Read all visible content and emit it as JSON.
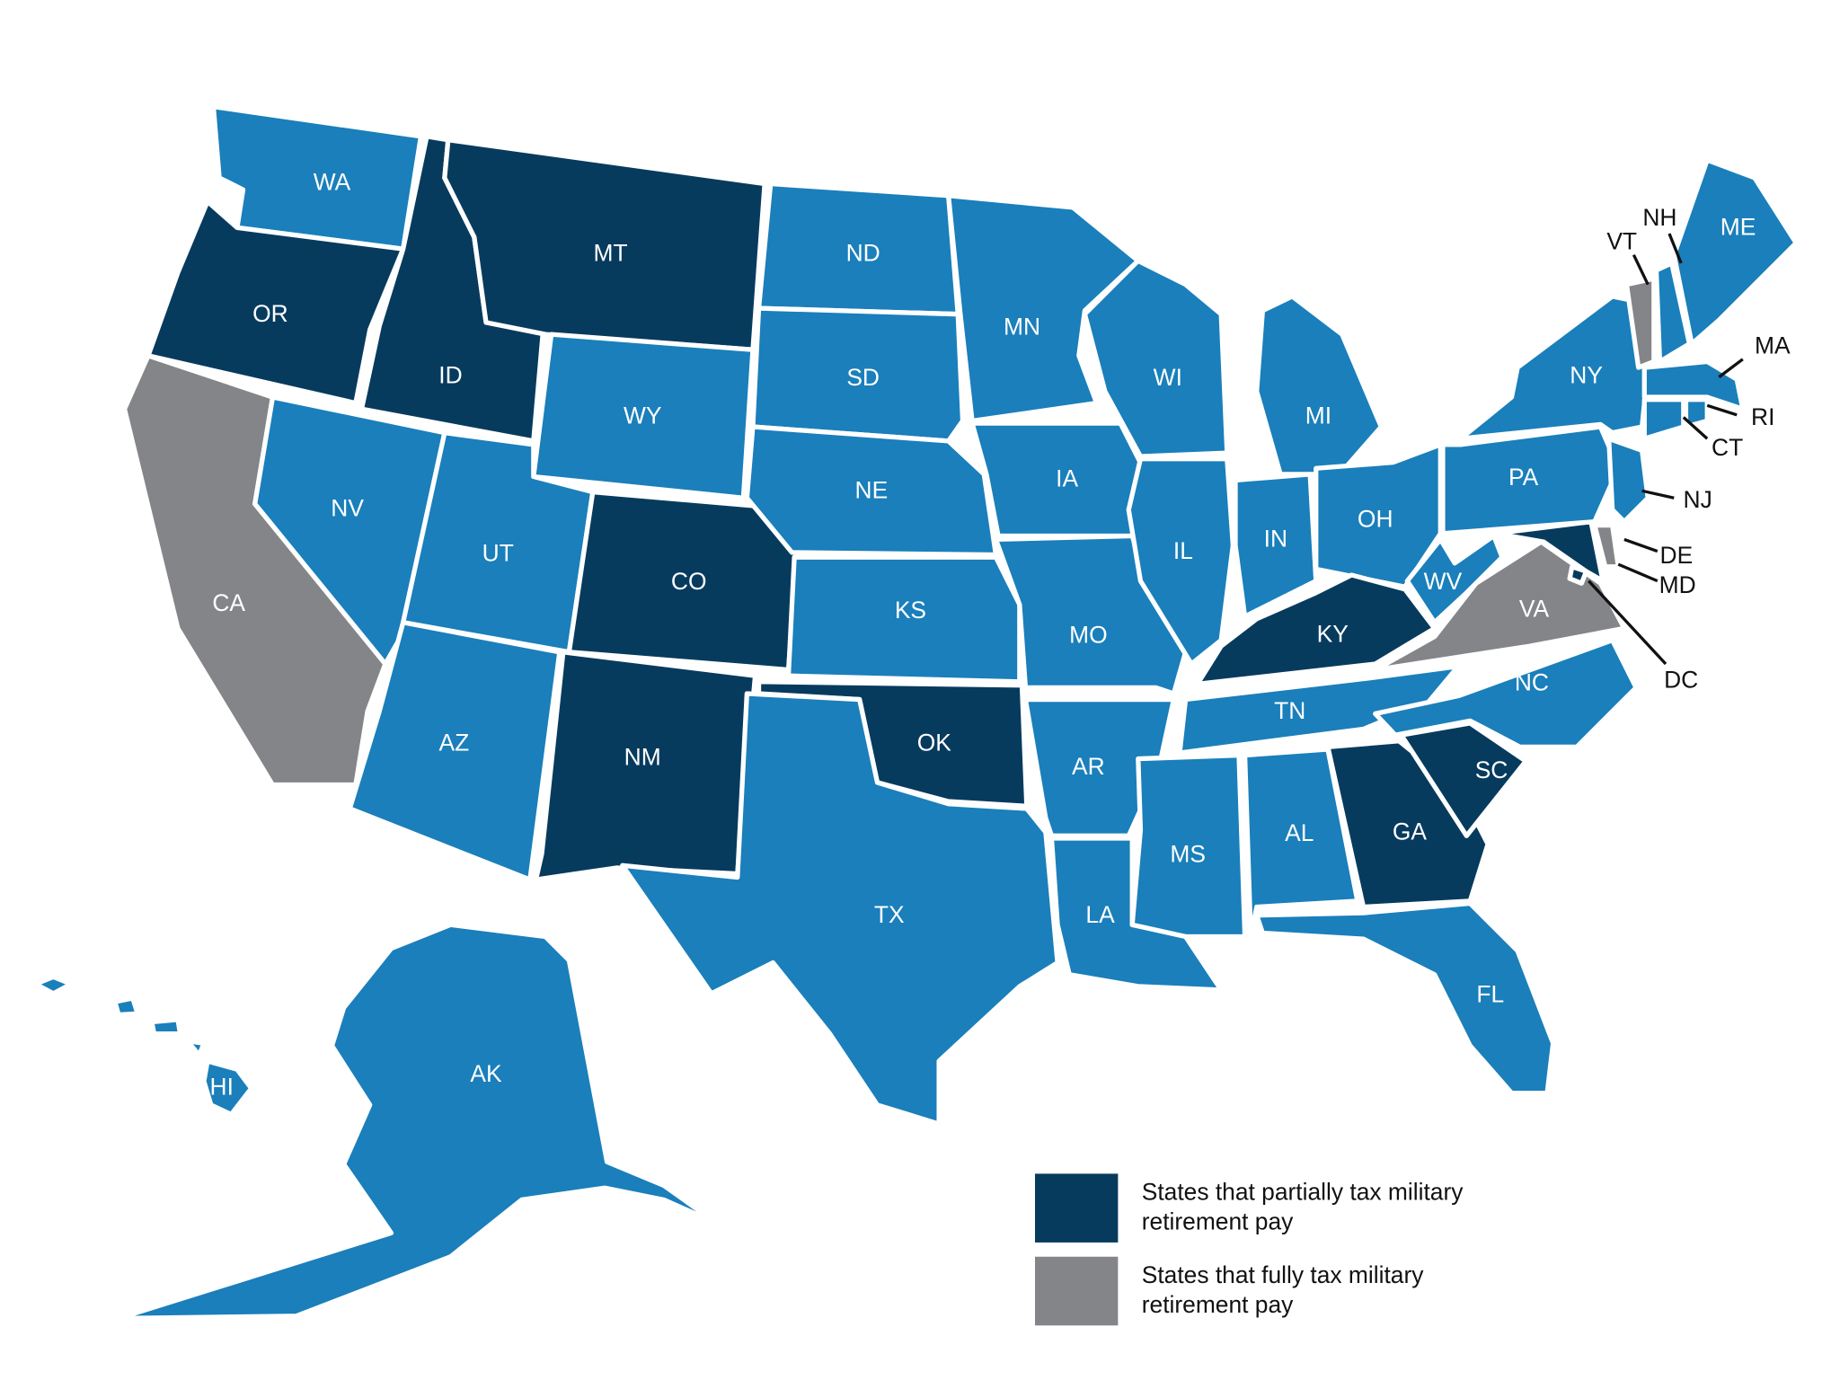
{
  "states": [
    {
      "label": "WA",
      "color": "#1a7fbb"
    },
    {
      "label": "OR",
      "color": "#073b5e"
    },
    {
      "label": "CA",
      "color": "#848589"
    },
    {
      "label": "ID",
      "color": "#073b5e"
    },
    {
      "label": "NV",
      "color": "#1a7fbb"
    },
    {
      "label": "MT",
      "color": "#073b5e"
    },
    {
      "label": "WY",
      "color": "#1a7fbb"
    },
    {
      "label": "UT",
      "color": "#1a7fbb"
    },
    {
      "label": "AZ",
      "color": "#1a7fbb"
    },
    {
      "label": "CO",
      "color": "#073b5e"
    },
    {
      "label": "NM",
      "color": "#073b5e"
    },
    {
      "label": "ND",
      "color": "#1a7fbb"
    },
    {
      "label": "SD",
      "color": "#1a7fbb"
    },
    {
      "label": "NE",
      "color": "#1a7fbb"
    },
    {
      "label": "KS",
      "color": "#1a7fbb"
    },
    {
      "label": "OK",
      "color": "#073b5e"
    },
    {
      "label": "TX",
      "color": "#1a7fbb"
    },
    {
      "label": "MN",
      "color": "#1a7fbb"
    },
    {
      "label": "IA",
      "color": "#1a7fbb"
    },
    {
      "label": "MO",
      "color": "#1a7fbb"
    },
    {
      "label": "AR",
      "color": "#1a7fbb"
    },
    {
      "label": "LA",
      "color": "#1a7fbb"
    },
    {
      "label": "WI",
      "color": "#1a7fbb"
    },
    {
      "label": "IL",
      "color": "#1a7fbb"
    },
    {
      "label": "MI",
      "color": "#1a7fbb"
    },
    {
      "label": "IN",
      "color": "#1a7fbb"
    },
    {
      "label": "OH",
      "color": "#1a7fbb"
    },
    {
      "label": "KY",
      "color": "#073b5e"
    },
    {
      "label": "TN",
      "color": "#1a7fbb"
    },
    {
      "label": "MS",
      "color": "#1a7fbb"
    },
    {
      "label": "AL",
      "color": "#1a7fbb"
    },
    {
      "label": "GA",
      "color": "#073b5e"
    },
    {
      "label": "FL",
      "color": "#1a7fbb"
    },
    {
      "label": "SC",
      "color": "#073b5e"
    },
    {
      "label": "NC",
      "color": "#1a7fbb"
    },
    {
      "label": "VA",
      "color": "#848589"
    },
    {
      "label": "WV",
      "color": "#1a7fbb"
    },
    {
      "label": "MD",
      "color": "#073b5e"
    },
    {
      "label": "DE",
      "color": "#848589"
    },
    {
      "label": "DC",
      "color": "#073b5e"
    },
    {
      "label": "PA",
      "color": "#1a7fbb"
    },
    {
      "label": "NY",
      "color": "#1a7fbb"
    },
    {
      "label": "NJ",
      "color": "#1a7fbb"
    },
    {
      "label": "VT",
      "color": "#848589"
    },
    {
      "label": "NH",
      "color": "#1a7fbb"
    },
    {
      "label": "ME",
      "color": "#1a7fbb"
    },
    {
      "label": "MA",
      "color": "#1a7fbb"
    },
    {
      "label": "CT",
      "color": "#1a7fbb"
    },
    {
      "label": "RI",
      "color": "#1a7fbb"
    },
    {
      "label": "AK",
      "color": "#1a7fbb"
    },
    {
      "label": "HI",
      "color": "#1a7fbb"
    }
  ],
  "legend": {
    "items": [
      {
        "lines": [
          "States that partially tax military",
          "retirement pay"
        ],
        "color": "#073b5e"
      },
      {
        "lines": [
          "States that fully tax military",
          "retirement pay"
        ],
        "color": "#848589"
      }
    ]
  }
}
